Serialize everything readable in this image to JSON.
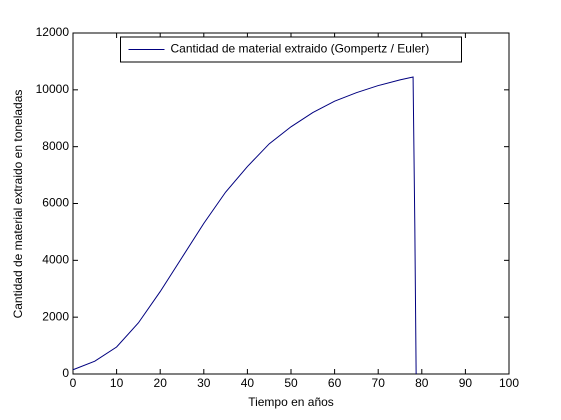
{
  "chart_data": {
    "type": "line",
    "xlabel": "Tiempo en años",
    "ylabel": "Cantidad de material extraido en toneladas",
    "x": [
      0,
      5,
      10,
      15,
      20,
      25,
      30,
      35,
      40,
      45,
      50,
      55,
      60,
      65,
      70,
      75,
      78,
      78.4,
      78.7
    ],
    "series": [
      {
        "name": "Cantidad de material extraido (Gompertz / Euler)",
        "color": "#00007f",
        "values": [
          150,
          450,
          950,
          1800,
          2900,
          4100,
          5300,
          6400,
          7300,
          8100,
          8700,
          9200,
          9600,
          9900,
          10150,
          10350,
          10450,
          5200,
          0
        ]
      }
    ],
    "xlim": [
      0,
      100
    ],
    "xticks": [
      0,
      10,
      20,
      30,
      40,
      50,
      60,
      70,
      80,
      90,
      100
    ],
    "ylim": [
      0,
      12000
    ],
    "yticks": [
      0,
      2000,
      4000,
      6000,
      8000,
      10000,
      12000
    ],
    "legend": "north",
    "grid": false
  }
}
